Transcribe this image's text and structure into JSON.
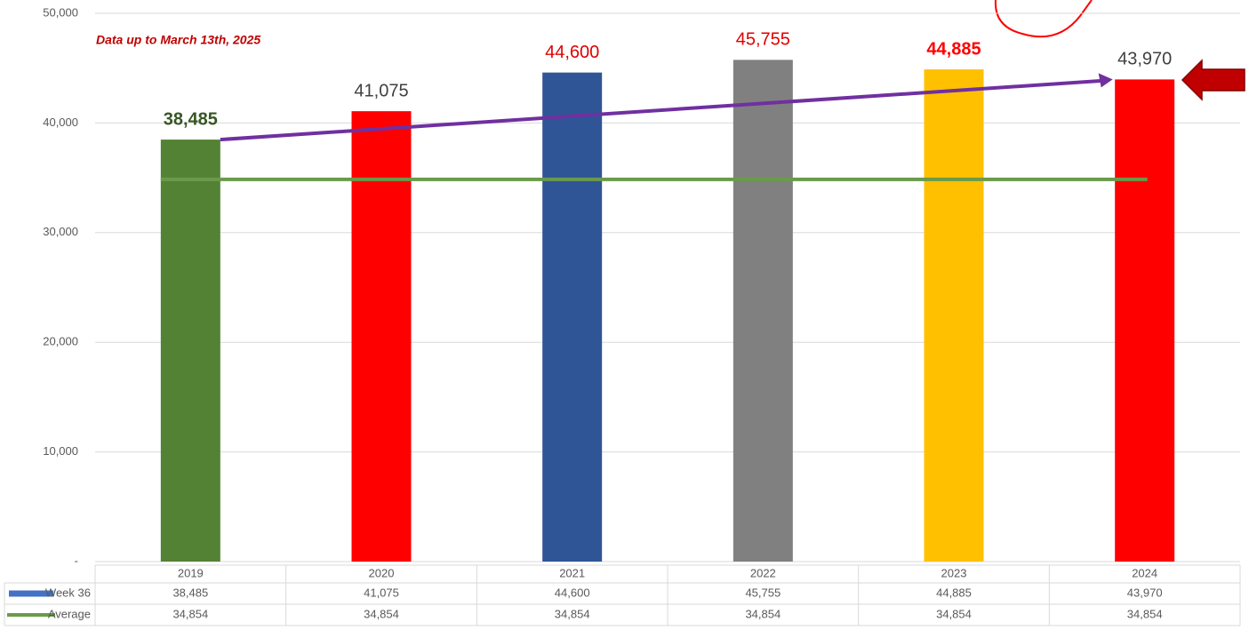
{
  "chart_data": {
    "type": "bar",
    "annotation": "Data up to March 13th, 2025",
    "categories": [
      "2019",
      "2020",
      "2021",
      "2022",
      "2023",
      "2024"
    ],
    "series": [
      {
        "name": "Week 36",
        "color": "#4472c4",
        "colors": [
          "#548235",
          "#ff0000",
          "#2f5597",
          "#808080",
          "#ffc000",
          "#ff0000"
        ],
        "label_colors": [
          "#375623",
          "#404040",
          "#e00000",
          "#e00000",
          "#ff0000",
          "#404040"
        ],
        "values": [
          38485,
          41075,
          44600,
          45755,
          44885,
          43970
        ],
        "value_labels": [
          "38,485",
          "41,075",
          "44,600",
          "45,755",
          "44,885",
          "43,970"
        ]
      },
      {
        "name": "Average",
        "type": "line",
        "color": "#6a9a4a",
        "values": [
          34854,
          34854,
          34854,
          34854,
          34854,
          34854
        ],
        "value_labels": [
          "34,854",
          "34,854",
          "34,854",
          "34,854",
          "34,854",
          "34,854"
        ]
      }
    ],
    "trend_color": "#7030a0",
    "ylim": [
      0,
      50000
    ],
    "yticks": [
      {
        "value": 0,
        "label": "-"
      },
      {
        "value": 10000,
        "label": "10,000"
      },
      {
        "value": 20000,
        "label": "20,000"
      },
      {
        "value": 30000,
        "label": "30,000"
      },
      {
        "value": 40000,
        "label": "40,000"
      },
      {
        "value": 50000,
        "label": "50,000"
      }
    ],
    "grid": true
  }
}
